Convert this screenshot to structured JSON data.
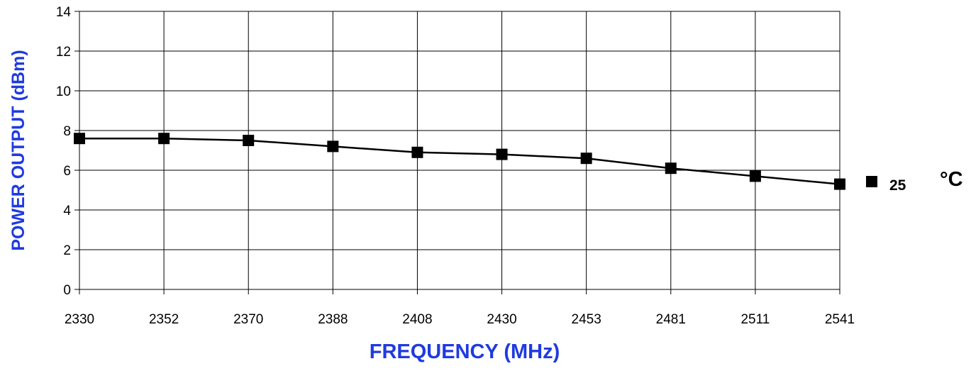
{
  "colors": {
    "axis_title": "#1f3ae0",
    "series": "#000000",
    "grid": "#000000",
    "background": "#ffffff"
  },
  "chart_data": {
    "type": "line",
    "title": "",
    "xlabel": "FREQUENCY (MHz)",
    "ylabel": "POWER OUTPUT (dBm)",
    "categories": [
      "2330",
      "2352",
      "2370",
      "2388",
      "2408",
      "2430",
      "2453",
      "2481",
      "2511",
      "2541"
    ],
    "ylim": [
      0,
      14
    ],
    "yticks": [
      0,
      2,
      4,
      6,
      8,
      10,
      12,
      14
    ],
    "grid": true,
    "legend_position": "right",
    "series": [
      {
        "name": "25",
        "marker": "square",
        "values": [
          7.6,
          7.6,
          7.5,
          7.2,
          6.9,
          6.8,
          6.6,
          6.1,
          5.7,
          5.3
        ]
      }
    ],
    "legend_unit": "°C"
  }
}
